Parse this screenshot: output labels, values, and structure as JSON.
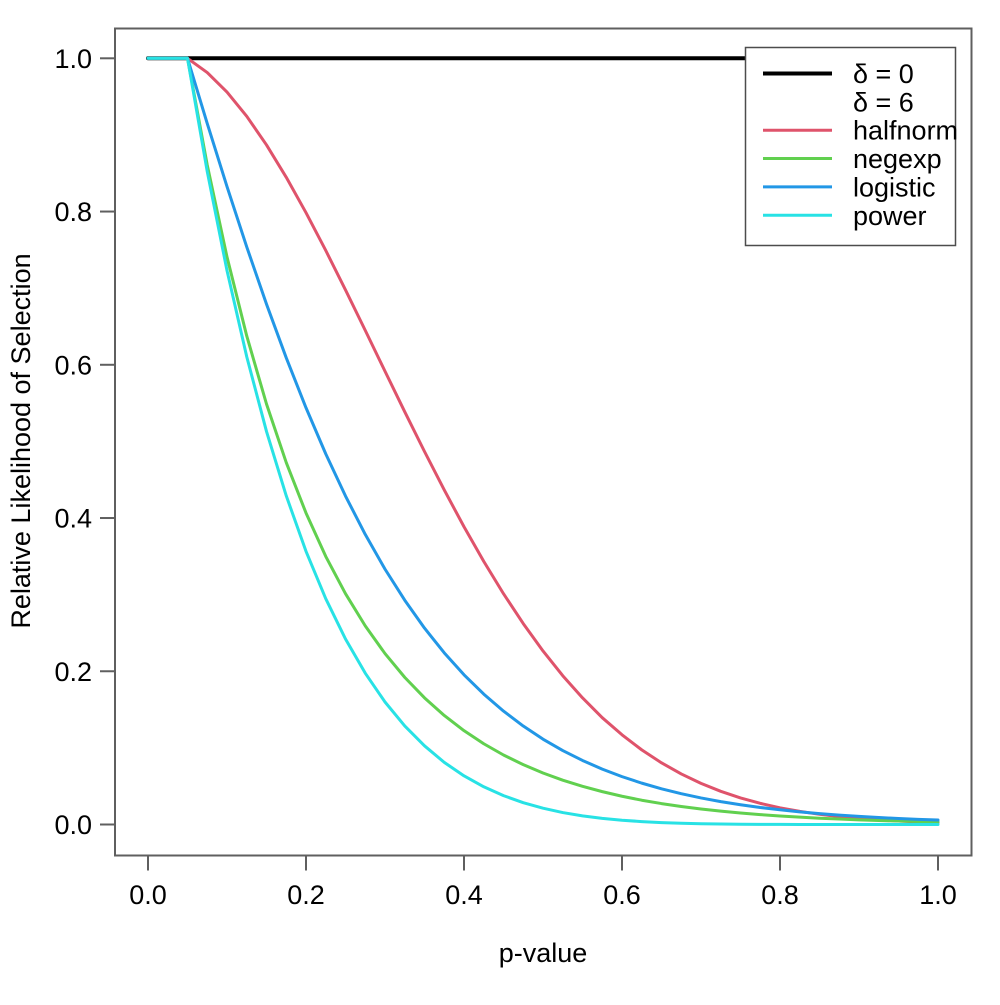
{
  "figure": {
    "background": "#ffffff",
    "text_color": "#000000",
    "axis_line_color": "#5f5f5f"
  },
  "chart_data": {
    "type": "line",
    "title": "",
    "xlabel": "p-value",
    "ylabel": "Relative Likelihood of Selection",
    "xlim": [
      0.0,
      1.0
    ],
    "ylim": [
      0.0,
      1.0
    ],
    "grid": false,
    "x_ticks": [
      "0.0",
      "0.2",
      "0.4",
      "0.6",
      "0.8",
      "1.0"
    ],
    "y_ticks": [
      "0.0",
      "0.2",
      "0.4",
      "0.6",
      "0.8",
      "1.0"
    ],
    "legend": {
      "position": "top-right",
      "border": true,
      "entries": [
        {
          "label": "δ = 0",
          "color": "#000000",
          "line": true,
          "line_width": 4
        },
        {
          "label": "δ = 6",
          "color": null,
          "line": false,
          "line_width": 0
        },
        {
          "label": "halfnorm",
          "color": "#DF536B",
          "line": true,
          "line_width": 3
        },
        {
          "label": "negexp",
          "color": "#61D04F",
          "line": true,
          "line_width": 3
        },
        {
          "label": "logistic",
          "color": "#2297E6",
          "line": true,
          "line_width": 3
        },
        {
          "label": "power",
          "color": "#28E2E5",
          "line": true,
          "line_width": 3
        }
      ]
    },
    "series": [
      {
        "name": "delta-0",
        "label": "δ = 0",
        "color": "#000000",
        "width": 4,
        "x": [
          0.0,
          1.0
        ],
        "y": [
          1.0,
          1.0
        ]
      },
      {
        "name": "halfnorm",
        "label": "halfnorm (δ = 6)",
        "color": "#DF536B",
        "width": 3,
        "x": [
          0.0,
          0.05,
          0.075,
          0.1,
          0.125,
          0.15,
          0.175,
          0.2,
          0.225,
          0.25,
          0.275,
          0.3,
          0.325,
          0.35,
          0.375,
          0.4,
          0.425,
          0.45,
          0.475,
          0.5,
          0.525,
          0.55,
          0.575,
          0.6,
          0.625,
          0.65,
          0.675,
          0.7,
          0.725,
          0.75,
          0.775,
          0.8,
          0.825,
          0.85,
          0.875,
          0.9,
          0.925,
          0.95,
          0.975,
          1.0
        ],
        "y": [
          1.0,
          1.0,
          0.9814,
          0.956,
          0.9243,
          0.8869,
          0.8447,
          0.7985,
          0.7492,
          0.6977,
          0.6449,
          0.5916,
          0.5386,
          0.4868,
          0.4366,
          0.3886,
          0.3434,
          0.3012,
          0.2622,
          0.2265,
          0.1942,
          0.1653,
          0.1394,
          0.1171,
          0.0974,
          0.0805,
          0.066,
          0.0537,
          0.0433,
          0.0347,
          0.0276,
          0.0218,
          0.0171,
          0.0133,
          0.0103,
          0.0079,
          0.006,
          0.0045,
          0.0034,
          0.0025
        ]
      },
      {
        "name": "negexp",
        "label": "negexp (δ = 6)",
        "color": "#61D04F",
        "width": 3,
        "x": [
          0.0,
          0.05,
          0.075,
          0.1,
          0.125,
          0.15,
          0.175,
          0.2,
          0.225,
          0.25,
          0.275,
          0.3,
          0.325,
          0.35,
          0.375,
          0.4,
          0.425,
          0.45,
          0.475,
          0.5,
          0.525,
          0.55,
          0.575,
          0.6,
          0.625,
          0.65,
          0.675,
          0.7,
          0.725,
          0.75,
          0.775,
          0.8,
          0.825,
          0.85,
          0.875,
          0.9,
          0.925,
          0.95,
          0.975,
          1.0
        ],
        "y": [
          1.0,
          1.0,
          0.8607,
          0.7408,
          0.6376,
          0.5488,
          0.4724,
          0.4066,
          0.3499,
          0.3012,
          0.2592,
          0.2231,
          0.192,
          0.1653,
          0.1423,
          0.1225,
          0.1054,
          0.0907,
          0.0781,
          0.0672,
          0.0578,
          0.0498,
          0.0429,
          0.0369,
          0.0317,
          0.0273,
          0.0235,
          0.0202,
          0.0174,
          0.015,
          0.0129,
          0.0111,
          0.0096,
          0.0082,
          0.0071,
          0.0061,
          0.0052,
          0.0045,
          0.0039,
          0.0034
        ]
      },
      {
        "name": "logistic",
        "label": "logistic (δ = 6)",
        "color": "#2297E6",
        "width": 3,
        "x": [
          0.0,
          0.05,
          0.075,
          0.1,
          0.125,
          0.15,
          0.175,
          0.2,
          0.225,
          0.25,
          0.275,
          0.3,
          0.325,
          0.35,
          0.375,
          0.4,
          0.425,
          0.45,
          0.475,
          0.5,
          0.525,
          0.55,
          0.575,
          0.6,
          0.625,
          0.65,
          0.675,
          0.7,
          0.725,
          0.75,
          0.775,
          0.8,
          0.825,
          0.85,
          0.875,
          0.9,
          0.925,
          0.95,
          0.975,
          1.0
        ],
        "y": [
          1.0,
          1.0,
          0.9149,
          0.8326,
          0.7538,
          0.6792,
          0.6091,
          0.5439,
          0.4837,
          0.4287,
          0.3786,
          0.3333,
          0.2927,
          0.2563,
          0.224,
          0.1954,
          0.1702,
          0.148,
          0.1285,
          0.1114,
          0.0965,
          0.0836,
          0.0723,
          0.0625,
          0.054,
          0.0466,
          0.0402,
          0.0347,
          0.0299,
          0.0258,
          0.0222,
          0.0192,
          0.0165,
          0.0142,
          0.0123,
          0.0106,
          0.0091,
          0.0078,
          0.0067,
          0.0058
        ]
      },
      {
        "name": "power",
        "label": "power (δ = 6)",
        "color": "#28E2E5",
        "width": 3,
        "x": [
          0.0,
          0.05,
          0.075,
          0.1,
          0.125,
          0.15,
          0.175,
          0.2,
          0.225,
          0.25,
          0.275,
          0.3,
          0.325,
          0.35,
          0.375,
          0.4,
          0.425,
          0.45,
          0.475,
          0.5,
          0.525,
          0.55,
          0.575,
          0.6,
          0.625,
          0.65,
          0.675,
          0.7,
          0.725,
          0.75,
          0.775,
          0.8,
          0.825,
          0.85,
          0.875,
          0.9,
          0.925,
          0.95,
          0.975,
          1.0
        ],
        "y": [
          1.0,
          1.0,
          0.8521,
          0.723,
          0.6105,
          0.513,
          0.429,
          0.3566,
          0.2947,
          0.2421,
          0.1975,
          0.1599,
          0.1286,
          0.1027,
          0.0811,
          0.0635,
          0.0492,
          0.0377,
          0.0285,
          0.0213,
          0.0156,
          0.0113,
          0.008,
          0.0056,
          0.0038,
          0.0025,
          0.0016,
          0.001,
          0.0006,
          0.0003,
          0.0002,
          0.0001,
          0.0,
          0.0,
          0.0,
          0.0,
          0.0,
          0.0,
          0.0,
          0.0
        ]
      }
    ]
  }
}
